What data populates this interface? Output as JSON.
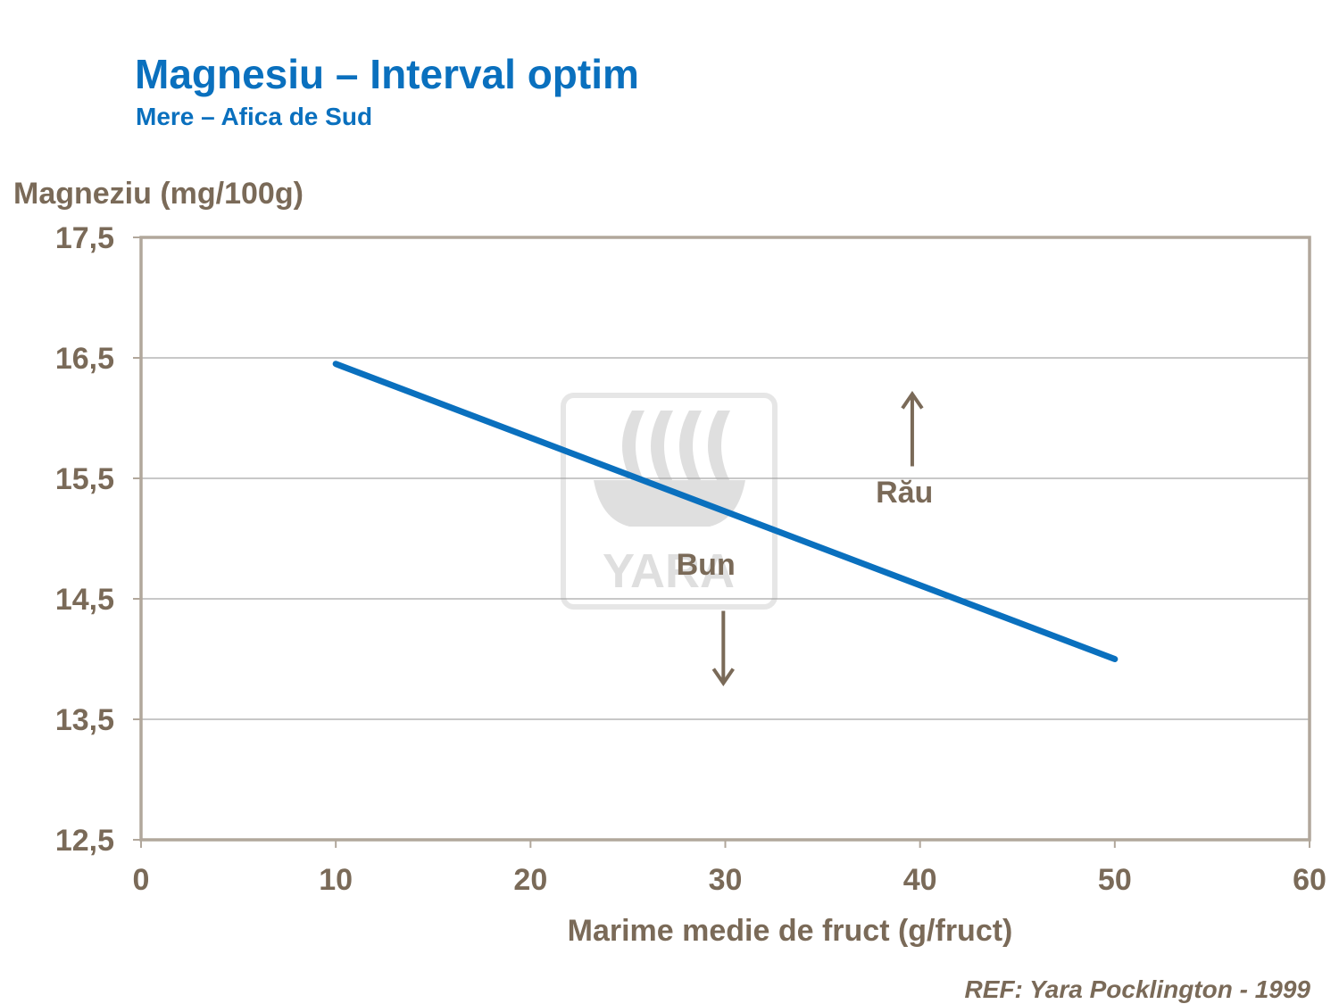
{
  "header": {
    "title": "Magnesiu – Interval optim",
    "subtitle": "Mere – Afica de Sud"
  },
  "footer": {
    "reference": "REF: Yara Pocklington  - 1999"
  },
  "watermark": {
    "text": "YARA",
    "icon": "yara-viking-ship-logo"
  },
  "colors": {
    "line": "#0a70be",
    "text": "#7a6a58",
    "axis": "#b1a79b",
    "grid": "#a6a6a6"
  },
  "chart_data": {
    "type": "line",
    "title": "Magnesiu – Interval optim",
    "subtitle": "Mere – Afica de Sud",
    "xlabel": "Marime medie de fruct (g/fruct)",
    "ylabel": "Magneziu (mg/100g)",
    "xlim": [
      0,
      60
    ],
    "ylim": [
      12.5,
      17.5
    ],
    "x_ticks": [
      0,
      10,
      20,
      30,
      40,
      50,
      60
    ],
    "x_tick_labels": [
      "0",
      "10",
      "20",
      "30",
      "40",
      "50",
      "60"
    ],
    "y_ticks": [
      12.5,
      13.5,
      14.5,
      15.5,
      16.5,
      17.5
    ],
    "y_tick_labels": [
      "12,5",
      "13,5",
      "14,5",
      "15,5",
      "16,5",
      "17,5"
    ],
    "grid": true,
    "legend": "none",
    "series": [
      {
        "name": "Interval optim",
        "x": [
          10,
          50
        ],
        "y": [
          16.45,
          14.0
        ]
      }
    ],
    "annotations": [
      {
        "text": "Rău",
        "x": 39.2,
        "y": 15.3,
        "arrow": "up",
        "arrow_from": [
          39.6,
          15.6
        ],
        "arrow_to": [
          39.6,
          16.2
        ]
      },
      {
        "text": "Bun",
        "x": 29.0,
        "y": 14.7,
        "arrow": "down",
        "arrow_from": [
          29.9,
          14.4
        ],
        "arrow_to": [
          29.9,
          13.8
        ]
      }
    ]
  }
}
